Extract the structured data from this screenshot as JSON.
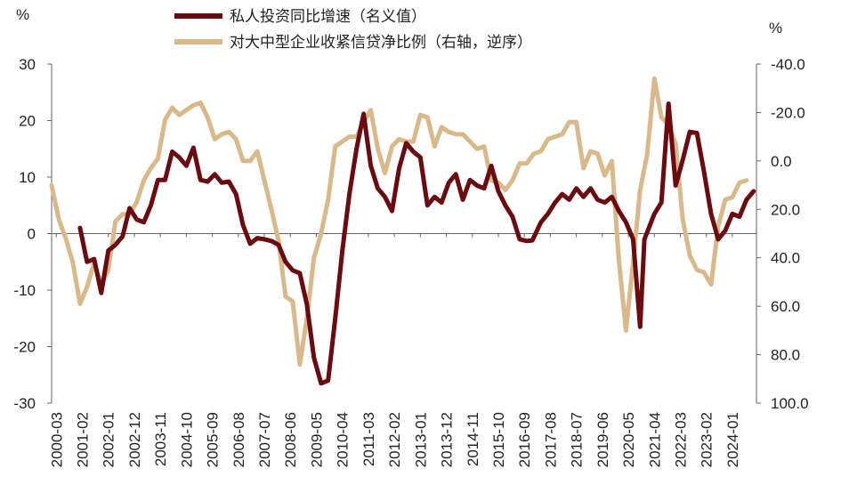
{
  "chart_data": {
    "type": "line",
    "title": "",
    "left_axis": {
      "unit": "%",
      "ylim": [
        -30,
        30
      ],
      "ticks": [
        "30",
        "20",
        "10",
        "0",
        "-10",
        "-20",
        "-30"
      ]
    },
    "right_axis": {
      "unit": "%",
      "ylim": [
        -40,
        100
      ],
      "inverted": true,
      "ticks": [
        "-40.0",
        "-20.0",
        "0.0",
        "20.0",
        "40.0",
        "60.0",
        "80.0",
        "100.0"
      ]
    },
    "x_ticks": [
      "2000-03",
      "2001-02",
      "2002-01",
      "2002-12",
      "2003-11",
      "2004-10",
      "2005-09",
      "2006-08",
      "2007-07",
      "2008-06",
      "2009-05",
      "2010-04",
      "2011-03",
      "2012-02",
      "2013-01",
      "2013-12",
      "2014-11",
      "2015-10",
      "2016-09",
      "2017-08",
      "2018-07",
      "2019-06",
      "2020-05",
      "2021-04",
      "2022-03",
      "2023-02",
      "2024-01"
    ],
    "legend_position": "top-center",
    "series": [
      {
        "name": "私人投资同比增速（名义值）",
        "axis": "left",
        "color": "#6b0a0f",
        "points": [
          [
            2001.0,
            1
          ],
          [
            2001.25,
            -5
          ],
          [
            2001.5,
            -4.5
          ],
          [
            2001.75,
            -10.5
          ],
          [
            2002.0,
            -3
          ],
          [
            2002.25,
            -2
          ],
          [
            2002.5,
            -0.5
          ],
          [
            2002.75,
            4.5
          ],
          [
            2003.0,
            2.5
          ],
          [
            2003.25,
            2
          ],
          [
            2003.5,
            5
          ],
          [
            2003.75,
            9.5
          ],
          [
            2004.0,
            9.5
          ],
          [
            2004.25,
            14.5
          ],
          [
            2004.5,
            13.5
          ],
          [
            2004.75,
            12
          ],
          [
            2005.0,
            15.2
          ],
          [
            2005.25,
            9.5
          ],
          [
            2005.5,
            9.2
          ],
          [
            2005.75,
            10.5
          ],
          [
            2006.0,
            9
          ],
          [
            2006.25,
            9.2
          ],
          [
            2006.5,
            7
          ],
          [
            2006.75,
            1.5
          ],
          [
            2007.0,
            -1.8
          ],
          [
            2007.25,
            -0.8
          ],
          [
            2007.5,
            -1
          ],
          [
            2007.75,
            -1.3
          ],
          [
            2008.0,
            -2
          ],
          [
            2008.25,
            -5
          ],
          [
            2008.5,
            -6.5
          ],
          [
            2008.75,
            -7
          ],
          [
            2009.0,
            -12.5
          ],
          [
            2009.25,
            -22
          ],
          [
            2009.5,
            -26.5
          ],
          [
            2009.75,
            -26
          ],
          [
            2010.0,
            -15
          ],
          [
            2010.25,
            -3
          ],
          [
            2010.5,
            7
          ],
          [
            2010.75,
            15
          ],
          [
            2011.0,
            21.2
          ],
          [
            2011.25,
            12
          ],
          [
            2011.5,
            8
          ],
          [
            2011.75,
            6.5
          ],
          [
            2012.0,
            4
          ],
          [
            2012.25,
            11.5
          ],
          [
            2012.5,
            16
          ],
          [
            2012.75,
            14.5
          ],
          [
            2013.0,
            13.5
          ],
          [
            2013.25,
            5
          ],
          [
            2013.5,
            6.5
          ],
          [
            2013.75,
            5.5
          ],
          [
            2014.0,
            9
          ],
          [
            2014.25,
            10.5
          ],
          [
            2014.5,
            6
          ],
          [
            2014.75,
            9.5
          ],
          [
            2015.0,
            8.5
          ],
          [
            2015.25,
            8
          ],
          [
            2015.5,
            12
          ],
          [
            2015.75,
            7.5
          ],
          [
            2016.0,
            5
          ],
          [
            2016.25,
            3
          ],
          [
            2016.5,
            -1
          ],
          [
            2016.75,
            -1.3
          ],
          [
            2016.95,
            -1.2
          ],
          [
            2017.25,
            2
          ],
          [
            2017.5,
            3.5
          ],
          [
            2017.75,
            5.5
          ],
          [
            2018.0,
            7
          ],
          [
            2018.25,
            6
          ],
          [
            2018.5,
            8
          ],
          [
            2018.75,
            6.5
          ],
          [
            2019.0,
            8
          ],
          [
            2019.25,
            6
          ],
          [
            2019.5,
            5.5
          ],
          [
            2019.75,
            6.5
          ],
          [
            2020.0,
            4
          ],
          [
            2020.25,
            2
          ],
          [
            2020.5,
            -1
          ],
          [
            2020.75,
            -16.5
          ],
          [
            2020.9,
            -1
          ],
          [
            2021.25,
            3.5
          ],
          [
            2021.5,
            5.5
          ],
          [
            2021.75,
            23
          ],
          [
            2022.0,
            8.5
          ],
          [
            2022.25,
            13
          ],
          [
            2022.5,
            18
          ],
          [
            2022.75,
            17.8
          ],
          [
            2023.0,
            11
          ],
          [
            2023.25,
            3.5
          ],
          [
            2023.5,
            -1
          ],
          [
            2023.75,
            0.5
          ],
          [
            2024.0,
            3.5
          ],
          [
            2024.25,
            3
          ],
          [
            2024.5,
            6
          ],
          [
            2024.75,
            7.5
          ]
        ]
      },
      {
        "name": "对大中型企业收紧信贷净比例（右轴，逆序）",
        "axis": "right",
        "color": "#d9b98a",
        "points": [
          [
            2000.0,
            10
          ],
          [
            2000.25,
            24
          ],
          [
            2000.5,
            32
          ],
          [
            2000.75,
            42
          ],
          [
            2001.0,
            59
          ],
          [
            2001.25,
            52
          ],
          [
            2001.5,
            42
          ],
          [
            2001.75,
            51
          ],
          [
            2002.0,
            45
          ],
          [
            2002.25,
            25
          ],
          [
            2002.5,
            22
          ],
          [
            2002.75,
            22
          ],
          [
            2003.0,
            17
          ],
          [
            2003.25,
            8
          ],
          [
            2003.5,
            3
          ],
          [
            2003.75,
            -1
          ],
          [
            2004.0,
            -17
          ],
          [
            2004.25,
            -22
          ],
          [
            2004.5,
            -19
          ],
          [
            2004.75,
            -21
          ],
          [
            2005.0,
            -23
          ],
          [
            2005.25,
            -24
          ],
          [
            2005.5,
            -18
          ],
          [
            2005.75,
            -9
          ],
          [
            2006.0,
            -11
          ],
          [
            2006.25,
            -12
          ],
          [
            2006.5,
            -9
          ],
          [
            2006.75,
            0
          ],
          [
            2007.0,
            0
          ],
          [
            2007.25,
            -4
          ],
          [
            2007.5,
            8
          ],
          [
            2007.75,
            20
          ],
          [
            2008.0,
            33
          ],
          [
            2008.25,
            56
          ],
          [
            2008.5,
            58
          ],
          [
            2008.75,
            84
          ],
          [
            2009.0,
            65
          ],
          [
            2009.25,
            40
          ],
          [
            2009.5,
            30
          ],
          [
            2009.75,
            16
          ],
          [
            2010.0,
            -6
          ],
          [
            2010.25,
            -8
          ],
          [
            2010.5,
            -10
          ],
          [
            2010.75,
            -10
          ],
          [
            2011.0,
            -16
          ],
          [
            2011.25,
            -21
          ],
          [
            2011.5,
            -5
          ],
          [
            2011.75,
            5
          ],
          [
            2012.0,
            -6
          ],
          [
            2012.25,
            -9
          ],
          [
            2012.5,
            -8
          ],
          [
            2012.75,
            -8
          ],
          [
            2013.0,
            -19
          ],
          [
            2013.25,
            -18
          ],
          [
            2013.5,
            -6
          ],
          [
            2013.75,
            -14
          ],
          [
            2014.0,
            -12
          ],
          [
            2014.25,
            -11
          ],
          [
            2014.5,
            -11
          ],
          [
            2014.75,
            -8
          ],
          [
            2015.0,
            -5
          ],
          [
            2015.25,
            -6
          ],
          [
            2015.5,
            8
          ],
          [
            2015.75,
            9
          ],
          [
            2016.0,
            12
          ],
          [
            2016.25,
            8
          ],
          [
            2016.5,
            1
          ],
          [
            2016.75,
            1
          ],
          [
            2017.0,
            -3
          ],
          [
            2017.25,
            -4
          ],
          [
            2017.5,
            -9
          ],
          [
            2017.75,
            -10
          ],
          [
            2018.0,
            -11
          ],
          [
            2018.25,
            -16
          ],
          [
            2018.5,
            -16
          ],
          [
            2018.75,
            3
          ],
          [
            2019.0,
            -4
          ],
          [
            2019.25,
            -3
          ],
          [
            2019.5,
            6
          ],
          [
            2019.75,
            0
          ],
          [
            2020.0,
            41
          ],
          [
            2020.25,
            70
          ],
          [
            2020.5,
            42
          ],
          [
            2020.75,
            12
          ],
          [
            2021.0,
            -3
          ],
          [
            2021.25,
            -34
          ],
          [
            2021.5,
            -18
          ],
          [
            2021.75,
            -15
          ],
          [
            2022.0,
            -7
          ],
          [
            2022.25,
            24
          ],
          [
            2022.5,
            39
          ],
          [
            2022.75,
            45
          ],
          [
            2023.0,
            46
          ],
          [
            2023.25,
            51
          ],
          [
            2023.5,
            27
          ],
          [
            2023.75,
            16
          ],
          [
            2024.0,
            15
          ],
          [
            2024.25,
            9
          ],
          [
            2024.5,
            8
          ]
        ]
      }
    ]
  }
}
